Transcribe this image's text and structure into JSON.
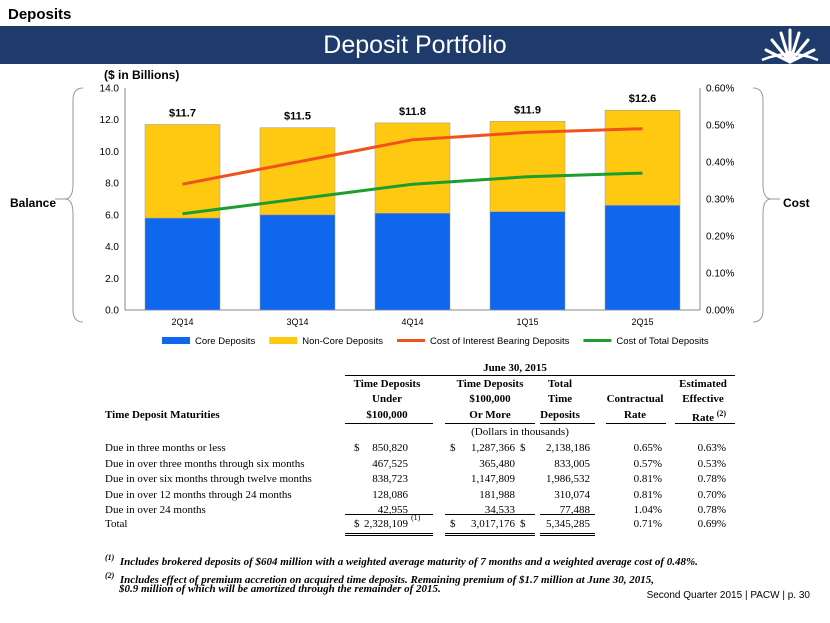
{
  "header": {
    "section": "Deposits",
    "title": "Deposit Portfolio"
  },
  "labels": {
    "units": "($ in Billions)",
    "left_axis_label": "Balance",
    "right_axis_label": "Cost"
  },
  "chart_data": {
    "type": "bar",
    "stacked": true,
    "categories": [
      "2Q14",
      "3Q14",
      "4Q14",
      "1Q15",
      "2Q15"
    ],
    "series": [
      {
        "name": "Core Deposits",
        "type": "bar",
        "axis": "left",
        "color": "#0f67ee",
        "values": [
          5.8,
          6.0,
          6.1,
          6.2,
          6.6
        ]
      },
      {
        "name": "Non-Core Deposits",
        "type": "bar",
        "axis": "left",
        "color": "#ffc912",
        "values": [
          5.9,
          5.5,
          5.7,
          5.7,
          6.0
        ]
      },
      {
        "name": "Cost of Interest Bearing Deposits",
        "type": "line",
        "axis": "right",
        "color": "#f0521e",
        "values": [
          0.34,
          0.4,
          0.46,
          0.48,
          0.49
        ]
      },
      {
        "name": "Cost of Total Deposits",
        "type": "line",
        "axis": "right",
        "color": "#1b9e2f",
        "values": [
          0.26,
          0.3,
          0.34,
          0.36,
          0.37
        ]
      }
    ],
    "bar_totals": [
      "$11.7",
      "$11.5",
      "$11.8",
      "$11.9",
      "$12.6"
    ],
    "left_axis": {
      "min": 0,
      "max": 14,
      "ticks": [
        "0.0",
        "2.0",
        "4.0",
        "6.0",
        "8.0",
        "10.0",
        "12.0",
        "14.0"
      ]
    },
    "right_axis": {
      "min": 0,
      "max": 0.6,
      "ticks": [
        "0.00%",
        "0.10%",
        "0.20%",
        "0.30%",
        "0.40%",
        "0.50%",
        "0.60%"
      ]
    },
    "legend_position": "bottom"
  },
  "table": {
    "period": "June 30, 2015",
    "row_header": "Time Deposit Maturities",
    "col1": {
      "l1": "Time Deposits",
      "l2": "Under",
      "l3": "$100,000"
    },
    "col2": {
      "l1": "Time Deposits",
      "l2": "$100,000",
      "l3": "Or More"
    },
    "col3": {
      "l1": "Total",
      "l2": "Time",
      "l3": "Deposits"
    },
    "col4": {
      "l3": "Contractual",
      "l4": "Rate"
    },
    "col5": {
      "l1": "Estimated",
      "l2": "Effective",
      "l3": "Rate",
      "sup": "(2)"
    },
    "units_note": "(Dollars in thousands)",
    "dollar_sign": "$",
    "rows": [
      {
        "label": "Due in three months or less",
        "dollars": true,
        "under": "850,820",
        "more": "1,287,366",
        "total": "2,138,186",
        "contractual": "0.65%",
        "effective": "0.63%"
      },
      {
        "label": "Due in over three months through six months",
        "dollars": false,
        "under": "467,525",
        "more": "365,480",
        "total": "833,005",
        "contractual": "0.57%",
        "effective": "0.53%"
      },
      {
        "label": "Due in over six months through twelve months",
        "dollars": false,
        "under": "838,723",
        "more": "1,147,809",
        "total": "1,986,532",
        "contractual": "0.81%",
        "effective": "0.78%"
      },
      {
        "label": "Due in over 12 months through 24 months",
        "dollars": false,
        "under": "128,086",
        "more": "181,988",
        "total": "310,074",
        "contractual": "0.81%",
        "effective": "0.70%"
      },
      {
        "label": "Due in over 24 months",
        "dollars": false,
        "under": "42,955",
        "more": "34,533",
        "total": "77,488",
        "contractual": "1.04%",
        "effective": "0.78%"
      }
    ],
    "total_row": {
      "label": "Total",
      "under": "2,328,109",
      "under_note": "(1)",
      "more": "3,017,176",
      "total": "5,345,285",
      "contractual": "0.71%",
      "effective": "0.69%"
    }
  },
  "footnotes": {
    "fn1_mark": "(1)",
    "fn1": "Includes brokered deposits of $604 million with a weighted average maturity of 7 months and a weighted average cost of 0.48%.",
    "fn2_mark": "(2)",
    "fn2_line1": "Includes effect of premium accretion on acquired time deposits.  Remaining premium of $1.7 million at June 30, 2015,",
    "fn2_line2": "$0.9 million of which will be amortized through the remainder of 2015."
  },
  "footer": "Second Quarter 2015 | PACW | p. 30",
  "colors": {
    "banner": "#1f3b6c"
  }
}
